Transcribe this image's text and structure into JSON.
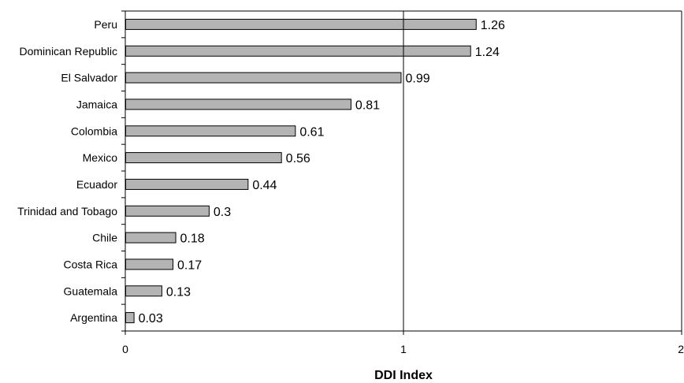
{
  "chart_data": {
    "type": "bar",
    "orientation": "horizontal",
    "title": "",
    "xlabel": "DDI Index",
    "ylabel": "",
    "categories": [
      "Peru",
      "Dominican Republic",
      "El Salvador",
      "Jamaica",
      "Colombia",
      "Mexico",
      "Ecuador",
      "Trinidad and Tobago",
      "Chile",
      "Costa Rica",
      "Guatemala",
      "Argentina"
    ],
    "values": [
      1.26,
      1.24,
      0.99,
      0.81,
      0.61,
      0.56,
      0.44,
      0.3,
      0.18,
      0.17,
      0.13,
      0.03
    ],
    "value_labels": [
      "1.26",
      "1.24",
      "0.99",
      "0.81",
      "0.61",
      "0.56",
      "0.44",
      "0.3",
      "0.18",
      "0.17",
      "0.13",
      "0.03"
    ],
    "xlim": [
      0,
      2
    ],
    "x_ticks": [
      "0",
      "1",
      "2"
    ],
    "reference_line_x": 1,
    "grid": false,
    "legend": "none",
    "bar_color": "#b4b4b4",
    "bar_edge_color": "#000000"
  }
}
